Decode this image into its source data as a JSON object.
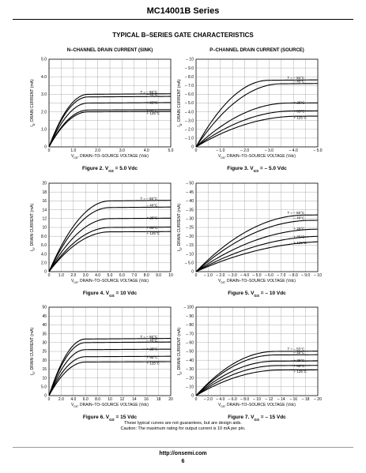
{
  "header": {
    "series": "MC14001B Series",
    "section": "TYPICAL B–SERIES GATE CHARACTERISTICS"
  },
  "footer": {
    "note1": "These typical curves are not guarantees, but are design aids.",
    "note2": "Caution: The maximum rating for output current is 10 mA per pin.",
    "url": "http://onsemi.com",
    "page": "6"
  },
  "chart_data": [
    {
      "type": "line",
      "title": "N–CHANNEL DRAIN CURRENT (SINK)",
      "caption": "Figure 2. V",
      "caption_sub": "GS",
      "caption_tail": " = 5.0 Vdc",
      "xlabel": "V",
      "xlabel_sub": "DS",
      "xlabel_tail": ", DRAIN–TO–SOURCE VOLTAGE (Vdc)",
      "ylabel": "I",
      "ylabel_sub": "D",
      "ylabel_tail": ", DRAIN CURRENT (mA)",
      "xlim": [
        0,
        5
      ],
      "ylim": [
        0,
        5
      ],
      "xticks": [
        "0",
        "1.0",
        "2.0",
        "3.0",
        "4.0",
        "5.0"
      ],
      "yticks": [
        "0",
        "1.0",
        "2.0",
        "3.0",
        "4.0",
        "5.0"
      ],
      "grid": true,
      "series": [
        {
          "name": "T = – 55°C",
          "sat": 3.0,
          "vk": 1.6
        },
        {
          "name": "– 40°C",
          "sat": 2.85,
          "vk": 1.6
        },
        {
          "name": "+ 25°C",
          "sat": 2.5,
          "vk": 1.6
        },
        {
          "name": "+ 85°C",
          "sat": 2.1,
          "vk": 1.6
        },
        {
          "name": "+ 125°C",
          "sat": 2.0,
          "vk": 1.6
        }
      ],
      "labels": [
        "T = – 55°C",
        "– 40°C",
        "+ 25°C",
        "+ 85°C",
        "+ 125°C"
      ]
    },
    {
      "type": "line",
      "title": "P–CHANNEL DRAIN CURRENT (SOURCE)",
      "caption": "Figure 3. V",
      "caption_sub": "GS",
      "caption_tail": " = – 5.0 Vdc",
      "xlabel": "V",
      "xlabel_sub": "DS",
      "xlabel_tail": ", DRAIN–TO–SOURCE VOLTAGE (Vdc)",
      "ylabel": "I",
      "ylabel_sub": "D",
      "ylabel_tail": ", DRAIN CURRENT (mA)",
      "xlim": [
        0,
        -5
      ],
      "ylim": [
        0,
        -10
      ],
      "xticks": [
        "0",
        "– 1.0",
        "– 2.0",
        "– 3.0",
        "– 4.0",
        "– 5.0"
      ],
      "yticks": [
        "0",
        "– 1.0",
        "– 2.0",
        "– 3.0",
        "– 4.0",
        "– 5.0",
        "– 6.0",
        "– 7.0",
        "– 8.0",
        "– 9.0",
        "– 10"
      ],
      "grid": true,
      "series": [
        {
          "name": "T = – 55°C",
          "sat": 7.6,
          "vk": 3.0
        },
        {
          "name": "– 40°C",
          "sat": 7.2,
          "vk": 3.5
        },
        {
          "name": "+ 25°C",
          "sat": 5.0,
          "vk": 3.8
        },
        {
          "name": "+ 85°C",
          "sat": 4.1,
          "vk": 4.0
        },
        {
          "name": "+ 125°C",
          "sat": 3.5,
          "vk": 4.2
        }
      ],
      "labels": [
        "T = – 55°C",
        "– 40°C",
        "+ 25°C",
        "+ 85°C",
        "+ 125°C"
      ]
    },
    {
      "type": "line",
      "title": "",
      "caption": "Figure 4. V",
      "caption_sub": "GS",
      "caption_tail": " = 10 Vdc",
      "xlabel": "V",
      "xlabel_sub": "DS",
      "xlabel_tail": ", DRAIN–TO–SOURCE VOLTAGE (Vdc)",
      "ylabel": "I",
      "ylabel_sub": "D",
      "ylabel_tail": ", DRAIN CURRENT (mA)",
      "xlim": [
        0,
        10
      ],
      "ylim": [
        0,
        20
      ],
      "xticks": [
        "0",
        "1.0",
        "2.0",
        "3.0",
        "4.0",
        "5.0",
        "6.0",
        "7.0",
        "8.0",
        "9.0",
        "10"
      ],
      "yticks": [
        "0",
        "2.0",
        "4.0",
        "6.0",
        "8.0",
        "10",
        "12",
        "14",
        "16",
        "18",
        "20"
      ],
      "grid": true,
      "series": [
        {
          "name": "T = – 55°C",
          "sat": 16.0,
          "vk": 5.0
        },
        {
          "name": "– 40°C",
          "sat": 14.5,
          "vk": 5.0
        },
        {
          "name": "+ 25°C",
          "sat": 12.0,
          "vk": 5.0
        },
        {
          "name": "+ 85°C",
          "sat": 10.0,
          "vk": 5.0
        },
        {
          "name": "+ 125°C",
          "sat": 9.0,
          "vk": 5.0
        }
      ],
      "labels": [
        "T = – 55°C",
        "– 40°C",
        "+ 25°C",
        "+ 85°C",
        "+ 125°C"
      ]
    },
    {
      "type": "line",
      "title": "",
      "caption": "Figure 5. V",
      "caption_sub": "GS",
      "caption_tail": " = – 10 Vdc",
      "xlabel": "V",
      "xlabel_sub": "DS",
      "xlabel_tail": ", DRAIN–TO–SOURCE VOLTAGE (Vdc)",
      "ylabel": "I",
      "ylabel_sub": "D",
      "ylabel_tail": ", DRAIN CURRENT (mA)",
      "xlim": [
        0,
        -10
      ],
      "ylim": [
        0,
        -50
      ],
      "xticks": [
        "0",
        "– 1.0",
        "– 2.0",
        "– 3.0",
        "– 4.0",
        "– 5.0",
        "– 6.0",
        "– 7.0",
        "– 8.0",
        "– 9.0",
        "– 10"
      ],
      "yticks": [
        "0",
        "– 5.0",
        "– 10",
        "– 15",
        "– 20",
        "– 25",
        "– 30",
        "– 35",
        "– 40",
        "– 45",
        "– 50"
      ],
      "grid": true,
      "series": [
        {
          "name": "T = – 55°C",
          "sat": 32.0,
          "vk": 9.0
        },
        {
          "name": "– 40°C",
          "sat": 29.0,
          "vk": 9.5
        },
        {
          "name": "+ 25°C",
          "sat": 24.0,
          "vk": 10.0
        },
        {
          "name": "+ 85°C",
          "sat": 20.0,
          "vk": 10.5
        },
        {
          "name": "+ 125°C",
          "sat": 17.0,
          "vk": 11.0
        }
      ],
      "labels": [
        "T = – 55°C",
        "– 40°C",
        "+ 25°C",
        "+ 85°C",
        "+ 125°C"
      ]
    },
    {
      "type": "line",
      "title": "",
      "caption": "Figure 6. V",
      "caption_sub": "GS",
      "caption_tail": " = 15 Vdc",
      "xlabel": "V",
      "xlabel_sub": "DS",
      "xlabel_tail": ", DRAIN–TO–SOURCE VOLTAGE (Vdc)",
      "ylabel": "I",
      "ylabel_sub": "D",
      "ylabel_tail": ", DRAIN CURRENT (mA)",
      "xlim": [
        0,
        20
      ],
      "ylim": [
        0,
        50
      ],
      "xticks": [
        "0",
        "2.0",
        "4.0",
        "6.0",
        "8.0",
        "10",
        "12",
        "14",
        "16",
        "18",
        "20"
      ],
      "yticks": [
        "0",
        "5.0",
        "10",
        "15",
        "20",
        "25",
        "30",
        "35",
        "40",
        "45",
        "50"
      ],
      "grid": true,
      "series": [
        {
          "name": "T = – 55°C",
          "sat": 32.0,
          "vk": 6.0
        },
        {
          "name": "– 40°C",
          "sat": 30.0,
          "vk": 6.0
        },
        {
          "name": "+ 25°C",
          "sat": 26.0,
          "vk": 6.0
        },
        {
          "name": "+ 85°C",
          "sat": 22.0,
          "vk": 6.0
        },
        {
          "name": "+ 125°C",
          "sat": 19.0,
          "vk": 6.0
        }
      ],
      "labels": [
        "T = – 55°C",
        "– 40°C",
        "+ 25°C",
        "+ 85°C",
        "+ 125°C"
      ]
    },
    {
      "type": "line",
      "title": "",
      "caption": "Figure 7. V",
      "caption_sub": "GS",
      "caption_tail": " = – 15 Vdc",
      "xlabel": "V",
      "xlabel_sub": "DS",
      "xlabel_tail": ", DRAIN–TO–SOURCE VOLTAGE (Vdc)",
      "ylabel": "I",
      "ylabel_sub": "D",
      "ylabel_tail": ", DRAIN CURRENT (mA)",
      "xlim": [
        0,
        -20
      ],
      "ylim": [
        0,
        -100
      ],
      "xticks": [
        "0",
        "– 2.0",
        "– 4.0",
        "– 6.0",
        "– 8.0",
        "– 10",
        "– 12",
        "– 14",
        "– 16",
        "– 18",
        "– 20"
      ],
      "yticks": [
        "0",
        "– 10",
        "– 20",
        "– 30",
        "– 40",
        "– 50",
        "– 60",
        "– 70",
        "– 80",
        "– 90",
        "– 100"
      ],
      "grid": true,
      "series": [
        {
          "name": "T = – 55°C",
          "sat": 50.0,
          "vk": 13.0
        },
        {
          "name": "– 40°C",
          "sat": 46.0,
          "vk": 13.0
        },
        {
          "name": "+ 25°C",
          "sat": 39.0,
          "vk": 13.0
        },
        {
          "name": "+ 85°C",
          "sat": 34.0,
          "vk": 13.5
        },
        {
          "name": "+ 125°C",
          "sat": 29.0,
          "vk": 14.0
        }
      ],
      "labels": [
        "T = – 55°C",
        "– 40°C",
        "+ 25°C",
        "+ 85°C",
        "+ 125°C"
      ]
    }
  ]
}
